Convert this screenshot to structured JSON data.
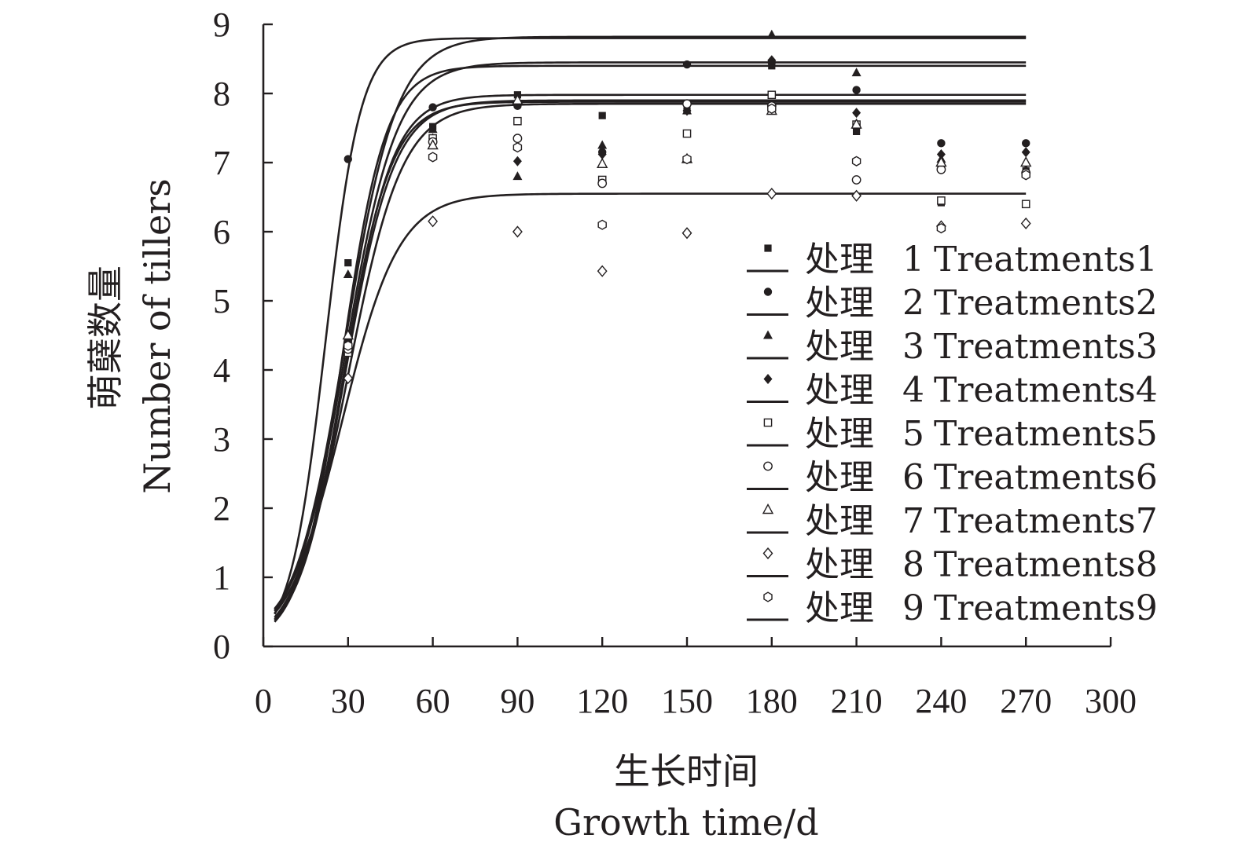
{
  "chart_data": {
    "type": "scatter",
    "title": "",
    "xlabel_cn": "生长时间",
    "xlabel_en": "Growth time/d",
    "ylabel_cn": "萌蘖数量",
    "ylabel_en": "Number of tillers",
    "xlim": [
      0,
      300
    ],
    "ylim": [
      0,
      9
    ],
    "xticks": [
      "0",
      "30",
      "60",
      "90",
      "120",
      "150",
      "180",
      "210",
      "240",
      "270",
      "300"
    ],
    "yticks": [
      "0",
      "1",
      "2",
      "3",
      "4",
      "5",
      "6",
      "7",
      "8",
      "9"
    ],
    "x": [
      30,
      60,
      90,
      120,
      150,
      180,
      210,
      240,
      270
    ],
    "legend_position": "right",
    "series": [
      {
        "name": "处理 1 Treatments1",
        "num": "1",
        "en": "Treatments1",
        "marker": "filled-square",
        "values": [
          5.55,
          7.52,
          7.98,
          7.68,
          7.75,
          8.4,
          7.45,
          6.42,
          6.88
        ],
        "fit": {
          "K": 8.4,
          "b": 0.13,
          "t0": 28
        }
      },
      {
        "name": "处理 2 Treatments2",
        "num": "2",
        "en": "Treatments2",
        "marker": "filled-circle",
        "values": [
          7.05,
          7.8,
          7.82,
          7.15,
          8.42,
          8.45,
          8.05,
          7.28,
          7.28
        ],
        "fit": {
          "K": 8.8,
          "b": 0.16,
          "t0": 22
        }
      },
      {
        "name": "处理 3 Treatments3",
        "num": "3",
        "en": "Treatments3",
        "marker": "filled-triangle",
        "values": [
          5.38,
          7.48,
          6.8,
          7.25,
          7.75,
          8.85,
          8.3,
          7.05,
          6.9
        ],
        "fit": {
          "K": 8.82,
          "b": 0.11,
          "t0": 29
        }
      },
      {
        "name": "处理 4 Treatments4",
        "num": "4",
        "en": "Treatments4",
        "marker": "filled-diamond",
        "values": [
          4.4,
          7.35,
          7.02,
          7.12,
          7.75,
          8.48,
          7.72,
          7.12,
          7.15
        ],
        "fit": {
          "K": 8.45,
          "b": 0.11,
          "t0": 29
        }
      },
      {
        "name": "处理 5 Treatments5",
        "num": "5",
        "en": "Treatments5",
        "marker": "open-square",
        "values": [
          4.25,
          7.35,
          7.6,
          6.75,
          7.42,
          7.98,
          7.55,
          6.45,
          6.4
        ],
        "fit": {
          "K": 7.98,
          "b": 0.12,
          "t0": 29
        }
      },
      {
        "name": "处理 6 Treatments6",
        "num": "6",
        "en": "Treatments6",
        "marker": "open-circle",
        "values": [
          4.3,
          7.3,
          7.35,
          6.7,
          7.85,
          7.82,
          6.75,
          6.9,
          6.85
        ],
        "fit": {
          "K": 7.9,
          "b": 0.115,
          "t0": 29
        }
      },
      {
        "name": "处理 7 Treatments7",
        "num": "7",
        "en": "Treatments7",
        "marker": "open-triangle",
        "values": [
          4.5,
          7.25,
          7.9,
          6.98,
          7.05,
          7.75,
          7.55,
          7.0,
          7.0
        ],
        "fit": {
          "K": 7.88,
          "b": 0.12,
          "t0": 28.5
        }
      },
      {
        "name": "处理 8 Treatments8",
        "num": "8",
        "en": "Treatments8",
        "marker": "open-diamond",
        "values": [
          3.88,
          6.15,
          6.0,
          5.43,
          5.98,
          6.55,
          6.52,
          6.08,
          6.12
        ],
        "fit": {
          "K": 6.55,
          "b": 0.1,
          "t0": 28
        }
      },
      {
        "name": "处理 9 Treatments9",
        "num": "9",
        "en": "Treatments9",
        "marker": "open-hexagon",
        "values": [
          4.35,
          7.08,
          7.22,
          6.1,
          7.05,
          7.78,
          7.02,
          6.05,
          6.82
        ],
        "fit": {
          "K": 7.85,
          "b": 0.105,
          "t0": 30
        }
      }
    ]
  },
  "legend_prefix": "处理",
  "colors": {
    "ink": "#231f20",
    "background": "#ffffff"
  }
}
